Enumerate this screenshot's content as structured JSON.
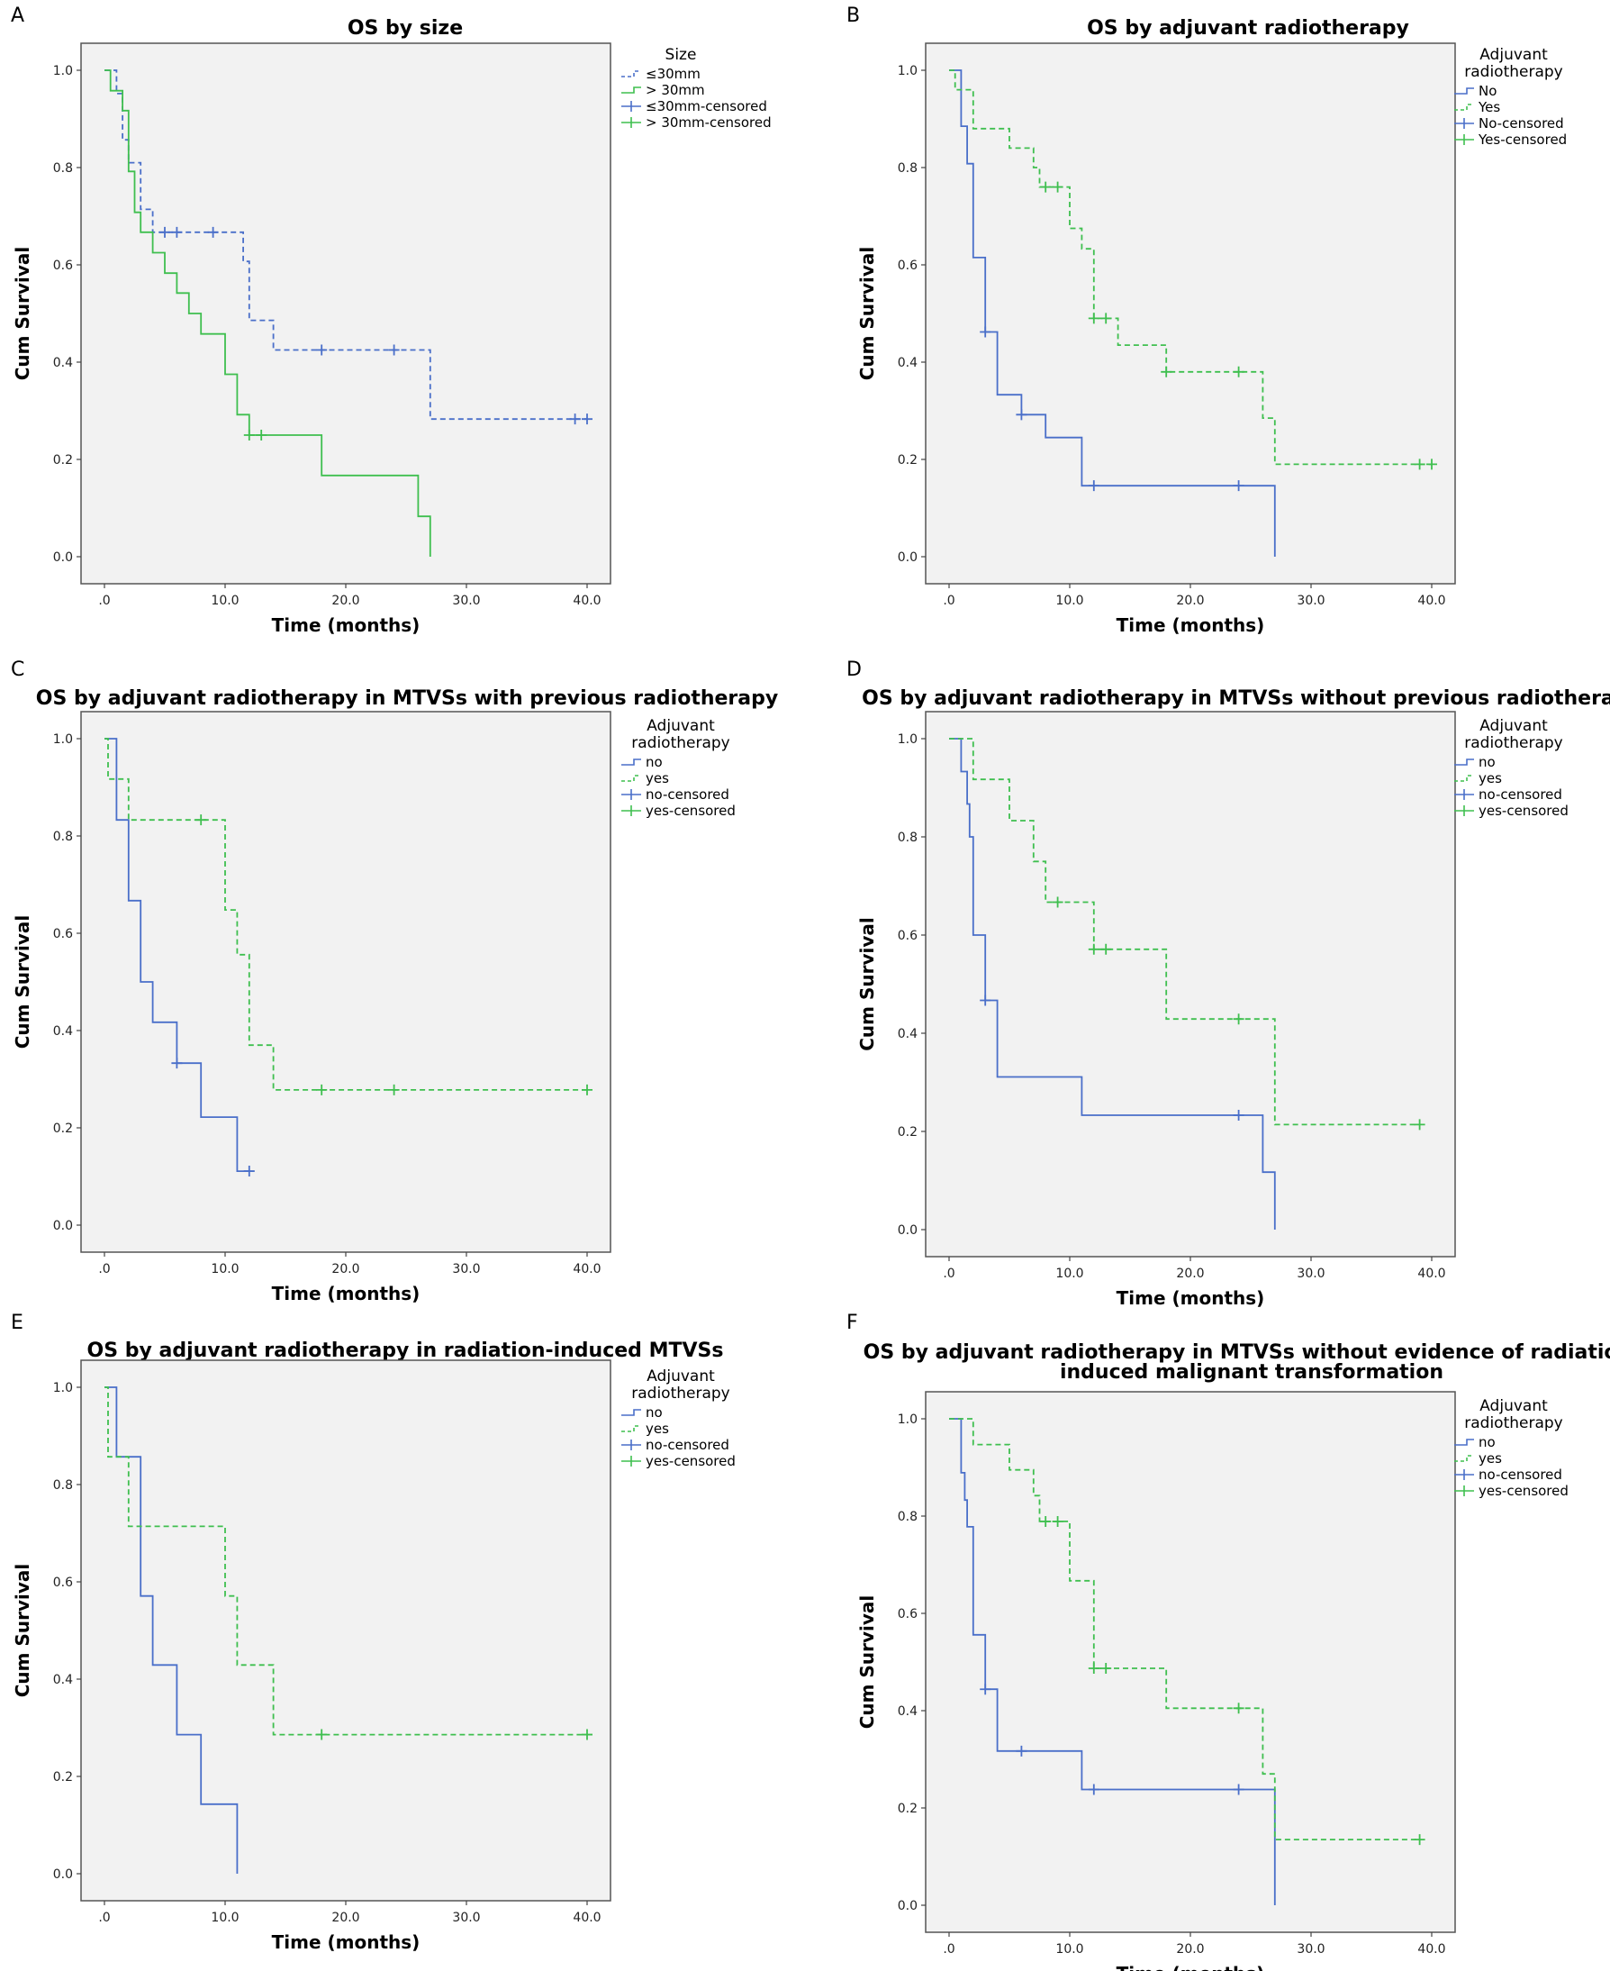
{
  "colors": {
    "blue": "#4a6fc9",
    "green": "#3fbf4f",
    "plot_bg": "#f2f2f2",
    "frame": "#555555"
  },
  "chart_data": [
    {
      "panel": "A",
      "title": [
        "OS by size"
      ],
      "type": "line",
      "xlabel": "Time (months)",
      "ylabel": "Cum Survival",
      "xlim": [
        0,
        40
      ],
      "ylim": [
        0,
        1
      ],
      "xticks": [
        ".0",
        "10.0",
        "20.0",
        "30.0",
        "40.0"
      ],
      "yticks": [
        "0.0",
        "0.2",
        "0.4",
        "0.6",
        "0.8",
        "1.0"
      ],
      "legend_title": [
        "Size"
      ],
      "legend_entries": [
        "≤30mm",
        "> 30mm",
        "≤30mm-censored",
        "> 30mm-censored"
      ],
      "series": [
        {
          "name": "≤30mm",
          "color": "blue",
          "dashed": true,
          "steps": [
            [
              0,
              1.0
            ],
            [
              1,
              0.952
            ],
            [
              1.5,
              0.857
            ],
            [
              2,
              0.81
            ],
            [
              3,
              0.714
            ],
            [
              4,
              0.667
            ],
            [
              11,
              0.667
            ],
            [
              11.5,
              0.607
            ],
            [
              12,
              0.486
            ],
            [
              14,
              0.425
            ],
            [
              27,
              0.283
            ],
            [
              40,
              0.283
            ]
          ],
          "censored": [
            [
              5,
              0.667
            ],
            [
              6,
              0.667
            ],
            [
              9,
              0.667
            ],
            [
              18,
              0.425
            ],
            [
              24,
              0.425
            ],
            [
              39,
              0.283
            ],
            [
              40,
              0.283
            ]
          ]
        },
        {
          "name": "> 30mm",
          "color": "green",
          "dashed": false,
          "steps": [
            [
              0,
              1.0
            ],
            [
              0.5,
              0.958
            ],
            [
              1.5,
              0.917
            ],
            [
              2,
              0.792
            ],
            [
              2.5,
              0.708
            ],
            [
              3,
              0.667
            ],
            [
              4,
              0.625
            ],
            [
              5,
              0.583
            ],
            [
              6,
              0.542
            ],
            [
              7,
              0.5
            ],
            [
              8,
              0.458
            ],
            [
              10,
              0.375
            ],
            [
              11,
              0.292
            ],
            [
              12,
              0.25
            ],
            [
              18,
              0.167
            ],
            [
              26,
              0.083
            ],
            [
              27,
              0.0
            ]
          ],
          "censored": [
            [
              12,
              0.25
            ],
            [
              13,
              0.25
            ]
          ]
        }
      ]
    },
    {
      "panel": "B",
      "title": [
        "OS by adjuvant radiotherapy"
      ],
      "type": "line",
      "xlabel": "Time (months)",
      "ylabel": "Cum Survival",
      "xlim": [
        0,
        40
      ],
      "ylim": [
        0,
        1
      ],
      "xticks": [
        ".0",
        "10.0",
        "20.0",
        "30.0",
        "40.0"
      ],
      "yticks": [
        "0.0",
        "0.2",
        "0.4",
        "0.6",
        "0.8",
        "1.0"
      ],
      "legend_title": [
        "Adjuvant",
        "radiotherapy"
      ],
      "legend_entries": [
        "No",
        "Yes",
        "No-censored",
        "Yes-censored"
      ],
      "series": [
        {
          "name": "No",
          "color": "blue",
          "dashed": false,
          "steps": [
            [
              0,
              1.0
            ],
            [
              1,
              0.885
            ],
            [
              1.5,
              0.808
            ],
            [
              2,
              0.615
            ],
            [
              3,
              0.462
            ],
            [
              4,
              0.333
            ],
            [
              6,
              0.292
            ],
            [
              8,
              0.245
            ],
            [
              11,
              0.146
            ],
            [
              27,
              0.146
            ],
            [
              27,
              0.0
            ]
          ],
          "censored": [
            [
              3,
              0.462
            ],
            [
              6,
              0.292
            ],
            [
              12,
              0.146
            ],
            [
              24,
              0.146
            ]
          ]
        },
        {
          "name": "Yes",
          "color": "green",
          "dashed": true,
          "steps": [
            [
              0,
              1.0
            ],
            [
              0.5,
              0.96
            ],
            [
              2,
              0.88
            ],
            [
              5,
              0.84
            ],
            [
              7,
              0.8
            ],
            [
              7.5,
              0.76
            ],
            [
              10,
              0.675
            ],
            [
              11,
              0.633
            ],
            [
              12,
              0.49
            ],
            [
              14,
              0.435
            ],
            [
              18,
              0.38
            ],
            [
              26,
              0.285
            ],
            [
              27,
              0.19
            ],
            [
              40,
              0.19
            ]
          ],
          "censored": [
            [
              8,
              0.76
            ],
            [
              9,
              0.76
            ],
            [
              12,
              0.49
            ],
            [
              13,
              0.49
            ],
            [
              18,
              0.38
            ],
            [
              24,
              0.38
            ],
            [
              39,
              0.19
            ],
            [
              40,
              0.19
            ]
          ]
        }
      ]
    },
    {
      "panel": "C",
      "title": [
        "OS by adjuvant radiotherapy in MTVSs with previous radiotherapy"
      ],
      "type": "line",
      "xlabel": "Time (months)",
      "ylabel": "Cum Survival",
      "xlim": [
        0,
        40
      ],
      "ylim": [
        0,
        1
      ],
      "xticks": [
        ".0",
        "10.0",
        "20.0",
        "30.0",
        "40.0"
      ],
      "yticks": [
        "0.0",
        "0.2",
        "0.4",
        "0.6",
        "0.8",
        "1.0"
      ],
      "legend_title": [
        "Adjuvant",
        "radiotherapy"
      ],
      "legend_entries": [
        "no",
        "yes",
        "no-censored",
        "yes-censored"
      ],
      "series": [
        {
          "name": "no",
          "color": "blue",
          "dashed": false,
          "steps": [
            [
              0,
              1.0
            ],
            [
              1,
              0.833
            ],
            [
              2,
              0.667
            ],
            [
              3,
              0.5
            ],
            [
              4,
              0.417
            ],
            [
              6,
              0.333
            ],
            [
              8,
              0.222
            ],
            [
              11,
              0.111
            ],
            [
              12,
              0.111
            ]
          ],
          "censored": [
            [
              6,
              0.333
            ],
            [
              12,
              0.111
            ]
          ]
        },
        {
          "name": "yes",
          "color": "green",
          "dashed": true,
          "steps": [
            [
              0,
              1.0
            ],
            [
              0.3,
              0.917
            ],
            [
              2,
              0.833
            ],
            [
              10,
              0.648
            ],
            [
              11,
              0.556
            ],
            [
              12,
              0.37
            ],
            [
              14,
              0.278
            ],
            [
              40,
              0.278
            ]
          ],
          "censored": [
            [
              8,
              0.833
            ],
            [
              18,
              0.278
            ],
            [
              24,
              0.278
            ],
            [
              40,
              0.278
            ]
          ]
        }
      ]
    },
    {
      "panel": "D",
      "title": [
        "OS by adjuvant radiotherapy in MTVSs without previous radiotherapy"
      ],
      "type": "line",
      "xlabel": "Time (months)",
      "ylabel": "Cum Survival",
      "xlim": [
        0,
        40
      ],
      "ylim": [
        0,
        1
      ],
      "xticks": [
        ".0",
        "10.0",
        "20.0",
        "30.0",
        "40.0"
      ],
      "yticks": [
        "0.0",
        "0.2",
        "0.4",
        "0.6",
        "0.8",
        "1.0"
      ],
      "legend_title": [
        "Adjuvant",
        "radiotherapy"
      ],
      "legend_entries": [
        "no",
        "yes",
        "no-censored",
        "yes-censored"
      ],
      "series": [
        {
          "name": "no",
          "color": "blue",
          "dashed": false,
          "steps": [
            [
              0,
              1.0
            ],
            [
              1,
              0.933
            ],
            [
              1.5,
              0.867
            ],
            [
              1.7,
              0.8
            ],
            [
              2,
              0.6
            ],
            [
              3,
              0.467
            ],
            [
              4,
              0.311
            ],
            [
              11,
              0.233
            ],
            [
              26,
              0.117
            ],
            [
              27,
              0.0
            ]
          ],
          "censored": [
            [
              3,
              0.467
            ],
            [
              24,
              0.233
            ]
          ]
        },
        {
          "name": "yes",
          "color": "green",
          "dashed": true,
          "steps": [
            [
              0,
              1.0
            ],
            [
              2,
              0.917
            ],
            [
              5,
              0.833
            ],
            [
              7,
              0.75
            ],
            [
              8,
              0.667
            ],
            [
              12,
              0.571
            ],
            [
              18,
              0.429
            ],
            [
              27,
              0.214
            ],
            [
              39,
              0.214
            ]
          ],
          "censored": [
            [
              9,
              0.667
            ],
            [
              12,
              0.571
            ],
            [
              13,
              0.571
            ],
            [
              24,
              0.429
            ],
            [
              39,
              0.214
            ]
          ]
        }
      ]
    },
    {
      "panel": "E",
      "title": [
        "OS by adjuvant radiotherapy in radiation-induced MTVSs"
      ],
      "type": "line",
      "xlabel": "Time (months)",
      "ylabel": "Cum Survival",
      "xlim": [
        0,
        40
      ],
      "ylim": [
        0,
        1
      ],
      "xticks": [
        ".0",
        "10.0",
        "20.0",
        "30.0",
        "40.0"
      ],
      "yticks": [
        "0.0",
        "0.2",
        "0.4",
        "0.6",
        "0.8",
        "1.0"
      ],
      "legend_title": [
        "Adjuvant",
        "radiotherapy"
      ],
      "legend_entries": [
        "no",
        "yes",
        "no-censored",
        "yes-censored"
      ],
      "series": [
        {
          "name": "no",
          "color": "blue",
          "dashed": false,
          "steps": [
            [
              0,
              1.0
            ],
            [
              1,
              0.857
            ],
            [
              3,
              0.571
            ],
            [
              4,
              0.429
            ],
            [
              6,
              0.286
            ],
            [
              8,
              0.143
            ],
            [
              11,
              0.0
            ]
          ],
          "censored": []
        },
        {
          "name": "yes",
          "color": "green",
          "dashed": true,
          "steps": [
            [
              0,
              1.0
            ],
            [
              0.3,
              0.857
            ],
            [
              2,
              0.714
            ],
            [
              10,
              0.571
            ],
            [
              11,
              0.429
            ],
            [
              14,
              0.286
            ],
            [
              40,
              0.286
            ]
          ],
          "censored": [
            [
              18,
              0.286
            ],
            [
              40,
              0.286
            ]
          ]
        }
      ]
    },
    {
      "panel": "F",
      "title": [
        "OS by adjuvant radiotherapy in MTVSs without evidence of radiation-",
        "induced malignant transformation"
      ],
      "type": "line",
      "xlabel": "Time (months)",
      "ylabel": "Cum Survival",
      "xlim": [
        0,
        40
      ],
      "ylim": [
        0,
        1
      ],
      "xticks": [
        ".0",
        "10.0",
        "20.0",
        "30.0",
        "40.0"
      ],
      "yticks": [
        "0.0",
        "0.2",
        "0.4",
        "0.6",
        "0.8",
        "1.0"
      ],
      "legend_title": [
        "Adjuvant",
        "radiotherapy"
      ],
      "legend_entries": [
        "no",
        "yes",
        "no-censored",
        "yes-censored"
      ],
      "series": [
        {
          "name": "no",
          "color": "blue",
          "dashed": false,
          "steps": [
            [
              0,
              1.0
            ],
            [
              1,
              0.889
            ],
            [
              1.3,
              0.833
            ],
            [
              1.5,
              0.778
            ],
            [
              2,
              0.556
            ],
            [
              3,
              0.444
            ],
            [
              4,
              0.317
            ],
            [
              11,
              0.238
            ],
            [
              27,
              0.238
            ],
            [
              27,
              0.0
            ]
          ],
          "censored": [
            [
              3,
              0.444
            ],
            [
              6,
              0.317
            ],
            [
              12,
              0.238
            ],
            [
              24,
              0.238
            ]
          ]
        },
        {
          "name": "yes",
          "color": "green",
          "dashed": true,
          "steps": [
            [
              0,
              1.0
            ],
            [
              2,
              0.947
            ],
            [
              5,
              0.895
            ],
            [
              7,
              0.842
            ],
            [
              7.5,
              0.789
            ],
            [
              10,
              0.667
            ],
            [
              12,
              0.487
            ],
            [
              18,
              0.405
            ],
            [
              26,
              0.27
            ],
            [
              27,
              0.135
            ],
            [
              39,
              0.135
            ]
          ],
          "censored": [
            [
              8,
              0.789
            ],
            [
              9,
              0.789
            ],
            [
              12,
              0.487
            ],
            [
              13,
              0.487
            ],
            [
              24,
              0.405
            ],
            [
              39,
              0.135
            ]
          ]
        }
      ]
    }
  ]
}
